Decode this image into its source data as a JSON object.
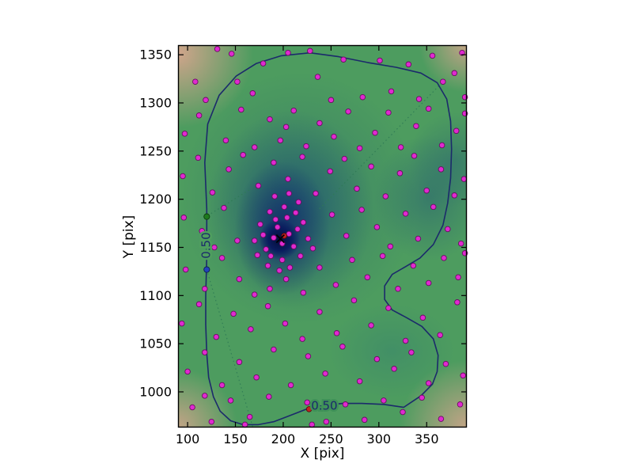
{
  "chart_data": {
    "type": "scatter",
    "title": "",
    "xlabel": "X [pix]",
    "ylabel": "Y [pix]",
    "xlim": [
      90,
      392
    ],
    "ylim": [
      963,
      1360
    ],
    "x_ticks": [
      100,
      150,
      200,
      250,
      300,
      350
    ],
    "y_ticks": [
      1000,
      1050,
      1100,
      1150,
      1200,
      1250,
      1300,
      1350
    ],
    "grid": false,
    "legend": "none",
    "heatmap": {
      "description": "smooth kernel-density background, density peak dark navy fading through green to tan corners",
      "peak_center": [
        197,
        1158
      ],
      "peak_color": "#071547",
      "mid_color": "#4d9c5f",
      "edge_color": "#b8c86a",
      "corner_color": "#d8a58e"
    },
    "contour": {
      "level_label": "0.50",
      "color": "#1b2a6b",
      "label_positions": [
        [
          120,
          1152
        ],
        [
          243,
          985
        ]
      ],
      "polyline": [
        [
          120,
          1190
        ],
        [
          118,
          1238
        ],
        [
          121,
          1278
        ],
        [
          133,
          1308
        ],
        [
          151,
          1328
        ],
        [
          172,
          1341
        ],
        [
          198,
          1349
        ],
        [
          228,
          1352
        ],
        [
          258,
          1348
        ],
        [
          288,
          1342
        ],
        [
          318,
          1337
        ],
        [
          344,
          1331
        ],
        [
          361,
          1321
        ],
        [
          371,
          1304
        ],
        [
          375,
          1281
        ],
        [
          376,
          1252
        ],
        [
          375,
          1222
        ],
        [
          372,
          1196
        ],
        [
          367,
          1173
        ],
        [
          357,
          1153
        ],
        [
          343,
          1139
        ],
        [
          328,
          1130
        ],
        [
          314,
          1122
        ],
        [
          306,
          1110
        ],
        [
          306,
          1096
        ],
        [
          314,
          1085
        ],
        [
          329,
          1077
        ],
        [
          345,
          1068
        ],
        [
          357,
          1055
        ],
        [
          362,
          1038
        ],
        [
          361,
          1021
        ],
        [
          356,
          1008
        ],
        [
          344,
          996
        ],
        [
          326,
          984
        ],
        [
          305,
          987
        ],
        [
          282,
          988
        ],
        [
          262,
          988
        ],
        [
          243,
          986
        ],
        [
          224,
          982
        ],
        [
          206,
          975
        ],
        [
          190,
          969
        ],
        [
          174,
          966
        ],
        [
          158,
          966
        ],
        [
          145,
          970
        ],
        [
          134,
          980
        ],
        [
          127,
          995
        ],
        [
          122,
          1015
        ],
        [
          120,
          1040
        ],
        [
          119,
          1070
        ],
        [
          119,
          1100
        ],
        [
          120,
          1140
        ],
        [
          120,
          1170
        ]
      ]
    },
    "dotted_lines": {
      "color": "#2f7a55",
      "segments": [
        [
          [
            120,
            1127
          ],
          [
            168,
            964
          ]
        ],
        [
          [
            238,
            1190
          ],
          [
            367,
            1322
          ]
        ],
        [
          [
            121,
            1183
          ],
          [
            170,
            1213
          ]
        ]
      ]
    },
    "scatter": {
      "color": "#e02ad0",
      "edge": "#6a0d62",
      "points": [
        [
          108,
          1322
        ],
        [
          131,
          1356
        ],
        [
          146,
          1351
        ],
        [
          168,
          1310
        ],
        [
          179,
          1341
        ],
        [
          205,
          1352
        ],
        [
          228,
          1354
        ],
        [
          250,
          1303
        ],
        [
          263,
          1345
        ],
        [
          283,
          1306
        ],
        [
          301,
          1344
        ],
        [
          313,
          1312
        ],
        [
          331,
          1340
        ],
        [
          342,
          1304
        ],
        [
          356,
          1349
        ],
        [
          367,
          1322
        ],
        [
          379,
          1331
        ],
        [
          387,
          1352
        ],
        [
          390,
          1306
        ],
        [
          119,
          1303
        ],
        [
          236,
          1327
        ],
        [
          152,
          1322
        ],
        [
          97,
          1268
        ],
        [
          112,
          1287
        ],
        [
          140,
          1261
        ],
        [
          156,
          1293
        ],
        [
          170,
          1254
        ],
        [
          186,
          1283
        ],
        [
          197,
          1261
        ],
        [
          211,
          1292
        ],
        [
          224,
          1255
        ],
        [
          238,
          1279
        ],
        [
          253,
          1265
        ],
        [
          268,
          1291
        ],
        [
          280,
          1253
        ],
        [
          296,
          1269
        ],
        [
          310,
          1290
        ],
        [
          323,
          1254
        ],
        [
          339,
          1276
        ],
        [
          352,
          1294
        ],
        [
          366,
          1256
        ],
        [
          381,
          1271
        ],
        [
          390,
          1289
        ],
        [
          203,
          1275
        ],
        [
          95,
          1224
        ],
        [
          111,
          1243
        ],
        [
          126,
          1207
        ],
        [
          143,
          1231
        ],
        [
          158,
          1246
        ],
        [
          174,
          1214
        ],
        [
          190,
          1238
        ],
        [
          205,
          1221
        ],
        [
          220,
          1244
        ],
        [
          234,
          1206
        ],
        [
          249,
          1229
        ],
        [
          264,
          1242
        ],
        [
          277,
          1211
        ],
        [
          292,
          1234
        ],
        [
          307,
          1203
        ],
        [
          322,
          1227
        ],
        [
          337,
          1245
        ],
        [
          350,
          1209
        ],
        [
          365,
          1231
        ],
        [
          379,
          1204
        ],
        [
          389,
          1221
        ],
        [
          96,
          1181
        ],
        [
          115,
          1167
        ],
        [
          138,
          1191
        ],
        [
          152,
          1157
        ],
        [
          251,
          1184
        ],
        [
          266,
          1162
        ],
        [
          282,
          1189
        ],
        [
          298,
          1171
        ],
        [
          312,
          1151
        ],
        [
          328,
          1185
        ],
        [
          341,
          1159
        ],
        [
          357,
          1192
        ],
        [
          372,
          1169
        ],
        [
          386,
          1154
        ],
        [
          98,
          1127
        ],
        [
          118,
          1107
        ],
        [
          136,
          1139
        ],
        [
          154,
          1117
        ],
        [
          128,
          1150
        ],
        [
          186,
          1107
        ],
        [
          203,
          1117
        ],
        [
          221,
          1103
        ],
        [
          238,
          1129
        ],
        [
          255,
          1111
        ],
        [
          272,
          1137
        ],
        [
          288,
          1119
        ],
        [
          304,
          1141
        ],
        [
          320,
          1107
        ],
        [
          336,
          1131
        ],
        [
          352,
          1113
        ],
        [
          368,
          1139
        ],
        [
          383,
          1119
        ],
        [
          390,
          1144
        ],
        [
          170,
          1101
        ],
        [
          94,
          1071
        ],
        [
          112,
          1091
        ],
        [
          130,
          1057
        ],
        [
          148,
          1081
        ],
        [
          166,
          1065
        ],
        [
          184,
          1089
        ],
        [
          202,
          1071
        ],
        [
          220,
          1055
        ],
        [
          238,
          1083
        ],
        [
          256,
          1061
        ],
        [
          274,
          1095
        ],
        [
          292,
          1069
        ],
        [
          310,
          1087
        ],
        [
          328,
          1053
        ],
        [
          346,
          1077
        ],
        [
          364,
          1059
        ],
        [
          382,
          1093
        ],
        [
          100,
          1021
        ],
        [
          118,
          1041
        ],
        [
          136,
          1007
        ],
        [
          154,
          1031
        ],
        [
          172,
          1015
        ],
        [
          190,
          1044
        ],
        [
          208,
          1007
        ],
        [
          226,
          1037
        ],
        [
          244,
          1019
        ],
        [
          262,
          1047
        ],
        [
          280,
          1011
        ],
        [
          298,
          1034
        ],
        [
          316,
          1024
        ],
        [
          334,
          1041
        ],
        [
          352,
          1009
        ],
        [
          370,
          1029
        ],
        [
          388,
          1017
        ],
        [
          105,
          984
        ],
        [
          125,
          969
        ],
        [
          145,
          991
        ],
        [
          165,
          974
        ],
        [
          185,
          995
        ],
        [
          225,
          989
        ],
        [
          245,
          969
        ],
        [
          265,
          987
        ],
        [
          285,
          971
        ],
        [
          305,
          991
        ],
        [
          325,
          979
        ],
        [
          345,
          994
        ],
        [
          365,
          972
        ],
        [
          385,
          987
        ],
        [
          230,
          966
        ],
        [
          160,
          966
        ],
        [
          118,
          996
        ],
        [
          182,
          1148
        ],
        [
          190,
          1160
        ],
        [
          199,
          1154
        ],
        [
          194,
          1171
        ],
        [
          206,
          1164
        ],
        [
          187,
          1141
        ],
        [
          199,
          1137
        ],
        [
          211,
          1151
        ],
        [
          179,
          1163
        ],
        [
          192,
          1179
        ],
        [
          204,
          1181
        ],
        [
          215,
          1169
        ],
        [
          176,
          1174
        ],
        [
          186,
          1187
        ],
        [
          201,
          1192
        ],
        [
          213,
          1186
        ],
        [
          196,
          1126
        ],
        [
          184,
          1131
        ],
        [
          207,
          1129
        ],
        [
          218,
          1141
        ],
        [
          170,
          1157
        ],
        [
          173,
          1142
        ],
        [
          226,
          1159
        ],
        [
          221,
          1176
        ],
        [
          231,
          1149
        ],
        [
          191,
          1203
        ],
        [
          206,
          1206
        ],
        [
          216,
          1197
        ]
      ]
    },
    "special_points": {
      "green_color": "#1e7a1e",
      "blue_color": "#2244bb",
      "red_color": "#c22222",
      "green": [
        120,
        1182
      ],
      "blue": [
        120,
        1127
      ],
      "red": [
        [
          201,
          1162
        ],
        [
          227,
          982
        ]
      ]
    },
    "center_marker": {
      "symbol": "x",
      "position": [
        197,
        1159
      ],
      "color": "#000000"
    }
  }
}
